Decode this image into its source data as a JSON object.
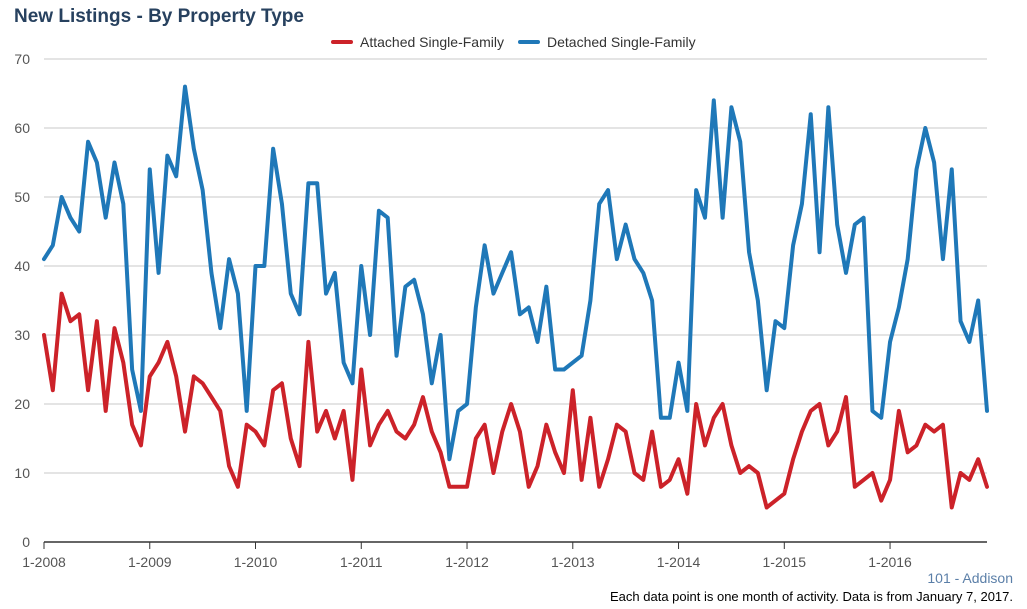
{
  "title": "New Listings - By Property Type",
  "region": "101 - Addison",
  "footnote": "Each data point is one month of activity. Data is from January 7, 2017.",
  "chart_data": {
    "type": "line",
    "title": "New Listings - By Property Type",
    "xlabel": "",
    "ylabel": "",
    "ylim": [
      0,
      70
    ],
    "yticks": [
      0,
      10,
      20,
      30,
      40,
      50,
      60,
      70
    ],
    "xticks": [
      "1-2008",
      "1-2009",
      "1-2010",
      "1-2011",
      "1-2012",
      "1-2013",
      "1-2014",
      "1-2015",
      "1-2016"
    ],
    "months_per_tick": 12,
    "grid": true,
    "legend_position": "top",
    "series": [
      {
        "name": "Attached Single-Family",
        "color": "#cc2229",
        "values": [
          30,
          22,
          36,
          32,
          33,
          22,
          32,
          19,
          31,
          26,
          17,
          14,
          24,
          26,
          29,
          24,
          16,
          24,
          23,
          21,
          19,
          11,
          8,
          17,
          16,
          14,
          22,
          23,
          15,
          11,
          29,
          16,
          19,
          15,
          19,
          9,
          25,
          14,
          17,
          19,
          16,
          15,
          17,
          21,
          16,
          13,
          8,
          8,
          8,
          15,
          17,
          10,
          16,
          20,
          16,
          8,
          11,
          17,
          13,
          10,
          22,
          9,
          18,
          8,
          12,
          17,
          16,
          10,
          9,
          16,
          8,
          9,
          12,
          7,
          20,
          14,
          18,
          20,
          14,
          10,
          11,
          10,
          5,
          6,
          7,
          12,
          16,
          19,
          20,
          14,
          16,
          21,
          8,
          9,
          10,
          6,
          9,
          19,
          13,
          14,
          17,
          16,
          17,
          5,
          10,
          9,
          12,
          8
        ]
      },
      {
        "name": "Detached Single-Family",
        "color": "#1f78b8",
        "values": [
          41,
          43,
          50,
          47,
          45,
          58,
          55,
          47,
          55,
          49,
          25,
          19,
          54,
          39,
          56,
          53,
          66,
          57,
          51,
          39,
          31,
          41,
          36,
          19,
          40,
          40,
          57,
          49,
          36,
          33,
          52,
          52,
          36,
          39,
          26,
          23,
          40,
          30,
          48,
          47,
          27,
          37,
          38,
          33,
          23,
          30,
          12,
          19,
          20,
          34,
          43,
          36,
          39,
          42,
          33,
          34,
          29,
          37,
          25,
          25,
          26,
          27,
          35,
          49,
          51,
          41,
          46,
          41,
          39,
          35,
          18,
          18,
          26,
          19,
          51,
          47,
          64,
          47,
          63,
          58,
          42,
          35,
          22,
          32,
          31,
          43,
          49,
          62,
          42,
          63,
          46,
          39,
          46,
          47,
          19,
          18,
          29,
          34,
          41,
          54,
          60,
          55,
          41,
          54,
          32,
          29,
          35,
          19
        ]
      }
    ]
  }
}
